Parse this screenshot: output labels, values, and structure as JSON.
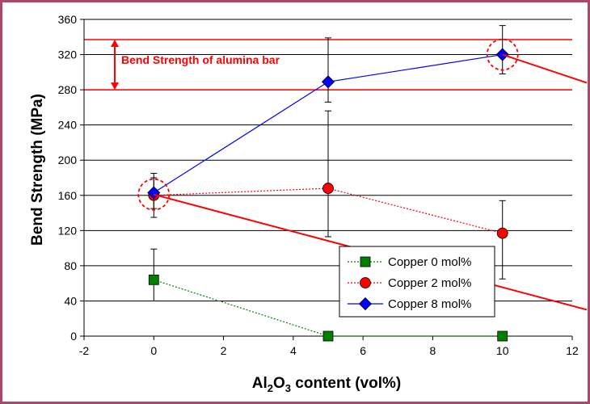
{
  "chart_data": {
    "type": "scatter",
    "xlabel_parts": {
      "prefix": "Al",
      "sub1": "2",
      "mid": "O",
      "sub2": "3",
      "suffix": " content (vol%)"
    },
    "ylabel": "Bend Strength (MPa)",
    "xlim": [
      -2,
      12
    ],
    "ylim": [
      0,
      360
    ],
    "x_ticks": [
      -2,
      0,
      2,
      4,
      6,
      8,
      10,
      12
    ],
    "y_ticks": [
      0,
      40,
      80,
      120,
      160,
      200,
      240,
      280,
      320,
      360
    ],
    "grid": {
      "y": true,
      "x": false
    },
    "legend_position": "lower-right",
    "series": [
      {
        "name": "Copper 0 mol%",
        "color": "#008000",
        "marker": "square",
        "line": "dotted",
        "points": [
          {
            "x": 0,
            "y": 64,
            "err_low": 40,
            "err_high": 99
          },
          {
            "x": 5,
            "y": 0
          },
          {
            "x": 10,
            "y": 0
          }
        ]
      },
      {
        "name": "Copper 2 mol%",
        "color": "#ff0000",
        "marker": "circle",
        "line": "dotted",
        "points": [
          {
            "x": 0,
            "y": 160,
            "err_low": 135,
            "err_high": 180
          },
          {
            "x": 5,
            "y": 168,
            "err_low": 113,
            "err_high": 256
          },
          {
            "x": 10,
            "y": 117,
            "err_low": 65,
            "err_high": 154
          }
        ]
      },
      {
        "name": "Copper 8 mol%",
        "color": "#0000ff",
        "marker": "diamond",
        "line": "solid",
        "points": [
          {
            "x": 0,
            "y": 163,
            "err_low": 145,
            "err_high": 185
          },
          {
            "x": 5,
            "y": 289,
            "err_low": 266,
            "err_high": 339
          },
          {
            "x": 10,
            "y": 320,
            "err_low": 298,
            "err_high": 353
          }
        ]
      }
    ],
    "annotation_band": {
      "label": "Bend Strength of alumina bar",
      "y_low": 280,
      "y_high": 337,
      "color": "#ff0000"
    },
    "highlight_circles": [
      {
        "x": 0,
        "y": 161
      },
      {
        "x": 10,
        "y": 320
      }
    ],
    "annotation_lines": [
      {
        "from": [
          0,
          161
        ],
        "to": [
          12.7,
          30
        ]
      },
      {
        "from": [
          10,
          320
        ],
        "to": [
          12.7,
          288
        ]
      }
    ]
  }
}
